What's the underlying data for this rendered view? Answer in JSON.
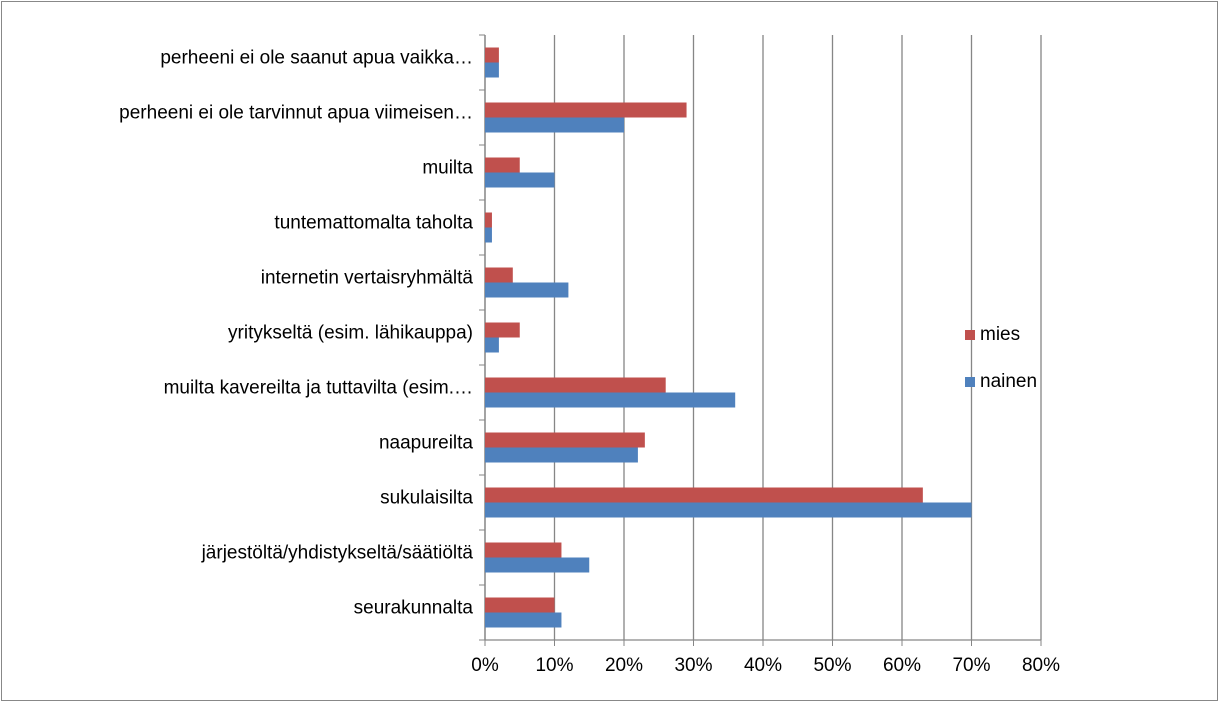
{
  "chart_data": {
    "type": "hbar",
    "categories": [
      "perheeni ei ole saanut apua vaikka…",
      "perheeni ei ole tarvinnut apua viimeisen…",
      "muilta",
      "tuntemattomalta taholta",
      "internetin vertaisryhmältä",
      "yritykseltä (esim. lähikauppa)",
      "muilta kavereilta ja tuttavilta (esim.…",
      "naapureilta",
      "sukulaisilta",
      "järjestöltä/yhdistykseltä/säätiöltä",
      "seurakunnalta"
    ],
    "series": [
      {
        "name": "mies",
        "color": "#c0504d",
        "values": [
          2,
          29,
          5,
          1,
          4,
          5,
          26,
          23,
          63,
          11,
          10
        ]
      },
      {
        "name": "nainen",
        "color": "#4f81bd",
        "values": [
          2,
          20,
          10,
          1,
          12,
          2,
          36,
          22,
          70,
          15,
          11
        ]
      }
    ],
    "xlim": [
      0,
      80
    ],
    "xticks": [
      {
        "value": 0,
        "label": "0%"
      },
      {
        "value": 10,
        "label": "10%"
      },
      {
        "value": 20,
        "label": "20%"
      },
      {
        "value": 30,
        "label": "30%"
      },
      {
        "value": 40,
        "label": "40%"
      },
      {
        "value": 50,
        "label": "50%"
      },
      {
        "value": 60,
        "label": "60%"
      },
      {
        "value": 70,
        "label": "70%"
      },
      {
        "value": 80,
        "label": "80%"
      }
    ],
    "grid": true,
    "legend": "right"
  }
}
